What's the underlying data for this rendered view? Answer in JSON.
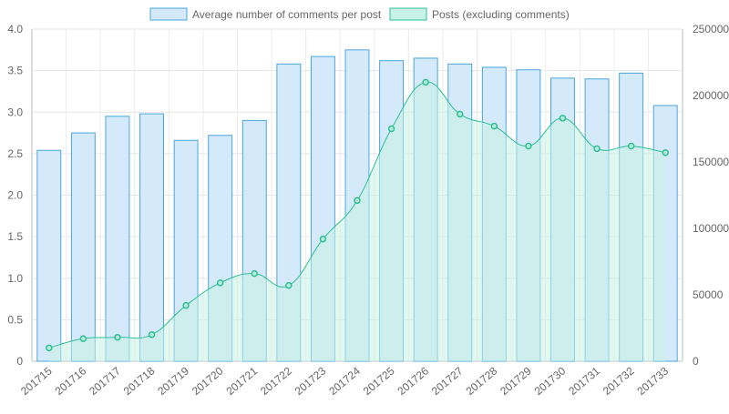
{
  "chart_data": {
    "type": "bar",
    "categories": [
      "201715",
      "201716",
      "201717",
      "201718",
      "201719",
      "201720",
      "201721",
      "201722",
      "201723",
      "201724",
      "201725",
      "201726",
      "201727",
      "201728",
      "201729",
      "201730",
      "201731",
      "201732",
      "201733"
    ],
    "series": [
      {
        "name": "Average number of comments per post",
        "type": "bar",
        "axis": "left",
        "values": [
          2.54,
          2.75,
          2.95,
          2.98,
          2.66,
          2.72,
          2.9,
          3.58,
          3.67,
          3.75,
          3.62,
          3.65,
          3.58,
          3.54,
          3.51,
          3.41,
          3.4,
          3.47,
          3.08
        ],
        "fill": "#d4e9f9",
        "stroke": "#4aa6dd"
      },
      {
        "name": "Posts (excluding comments)",
        "type": "area",
        "axis": "right",
        "values": [
          10000,
          17000,
          18000,
          20000,
          42000,
          59000,
          66000,
          57000,
          92000,
          121000,
          175000,
          210000,
          186000,
          177000,
          162000,
          183000,
          160000,
          162000,
          157000
        ],
        "fill": "#c9f2e6",
        "stroke": "#2ebf95"
      }
    ],
    "y_left": {
      "min": 0,
      "max": 4.0,
      "ticks": [
        "0",
        "0.5",
        "1.0",
        "1.5",
        "2.0",
        "2.5",
        "3.0",
        "3.5",
        "4.0"
      ]
    },
    "y_right": {
      "min": 0,
      "max": 250000,
      "ticks": [
        "0",
        "50000",
        "100000",
        "150000",
        "200000",
        "250000"
      ]
    },
    "grid": true,
    "legend_position": "top-center"
  }
}
